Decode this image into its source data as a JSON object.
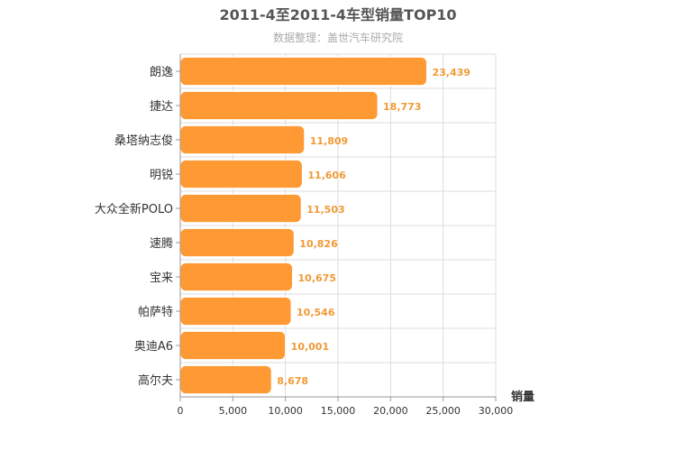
{
  "chart_data": {
    "type": "bar",
    "orientation": "horizontal",
    "title": "2011-4至2011-4车型销量TOP10",
    "subtitle": "数据整理：盖世汽车研究院",
    "categories": [
      "朗逸",
      "捷达",
      "桑塔纳志俊",
      "明锐",
      "大众全新POLO",
      "速腾",
      "宝来",
      "帕萨特",
      "奥迪A6",
      "高尔夫"
    ],
    "values": [
      23439,
      18773,
      11809,
      11606,
      11503,
      10826,
      10675,
      10546,
      10001,
      8678
    ],
    "value_labels": [
      "23,439",
      "18,773",
      "11,809",
      "11,606",
      "11,503",
      "10,826",
      "10,675",
      "10,546",
      "10,001",
      "8,678"
    ],
    "xlabel": "销量",
    "ylabel": "",
    "xlim": [
      0,
      30000
    ],
    "x_ticks": [
      0,
      5000,
      10000,
      15000,
      20000,
      25000,
      30000
    ],
    "x_tick_labels": [
      "0",
      "5,000",
      "10,000",
      "15,000",
      "20,000",
      "25,000",
      "30,000"
    ],
    "grid": true,
    "colors": {
      "bar": "#ff9933",
      "bar_stroke": "#ffffff",
      "value_label": "#f09a36",
      "grid": "#dddddd",
      "axis": "#999999"
    }
  }
}
